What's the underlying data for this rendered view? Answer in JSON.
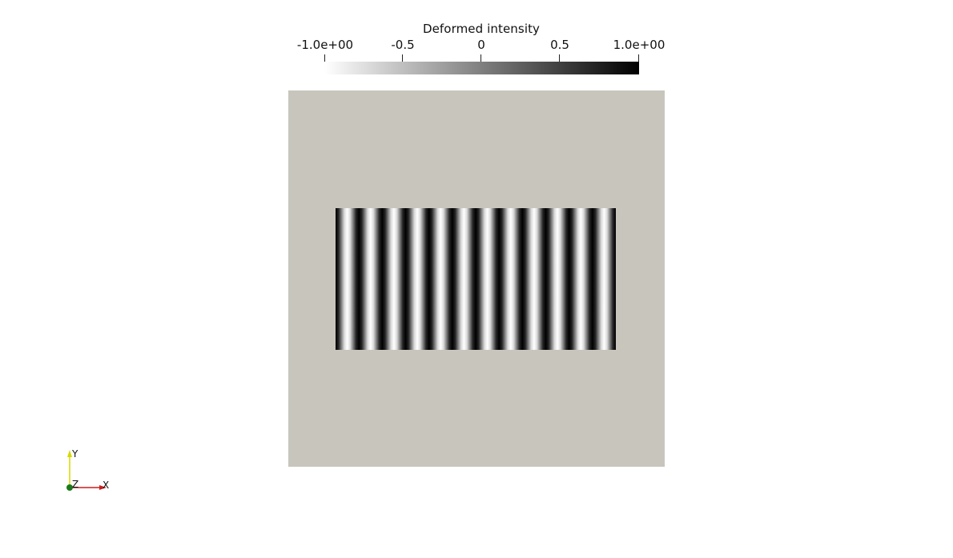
{
  "legend": {
    "title": "Deformed intensity",
    "ticks": [
      "-1.0e+00",
      "-0.5",
      "0",
      "0.5",
      "1.0e+00"
    ],
    "colormap": {
      "low_color": "#ffffff",
      "mid_color": "#7f7f7f",
      "high_color": "#000000"
    },
    "range": [
      -1.0,
      1.0
    ]
  },
  "scene": {
    "plate_color": "#c8c5bd",
    "stripe_pattern": {
      "stripe_count": 12,
      "dark_color": "#000000",
      "light_color": "#ffffff"
    }
  },
  "orientation_axes": {
    "x_label": "X",
    "y_label": "Y",
    "z_label": "Z",
    "x_color": "#cc1f1f",
    "y_color": "#d8d800",
    "z_color": "#1a7a1a"
  }
}
